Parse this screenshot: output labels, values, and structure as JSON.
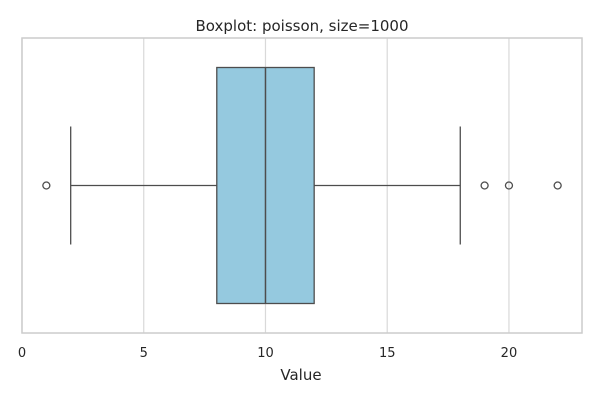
{
  "chart_data": {
    "type": "boxplot",
    "title": "Boxplot: poisson, size=1000",
    "xlabel": "Value",
    "ylabel": "",
    "xlim": [
      0,
      23
    ],
    "xticks": [
      0,
      5,
      10,
      15,
      20
    ],
    "grid": true,
    "orientation": "horizontal",
    "box": {
      "whisker_low": 2,
      "q1": 8,
      "median": 10,
      "q3": 12,
      "whisker_high": 18,
      "outliers": [
        1,
        19,
        20,
        22
      ]
    },
    "colors": {
      "box_fill": "#95c9df",
      "line": "#4d4d4d",
      "grid": "#d9d9d9",
      "frame": "#cccccc"
    }
  }
}
